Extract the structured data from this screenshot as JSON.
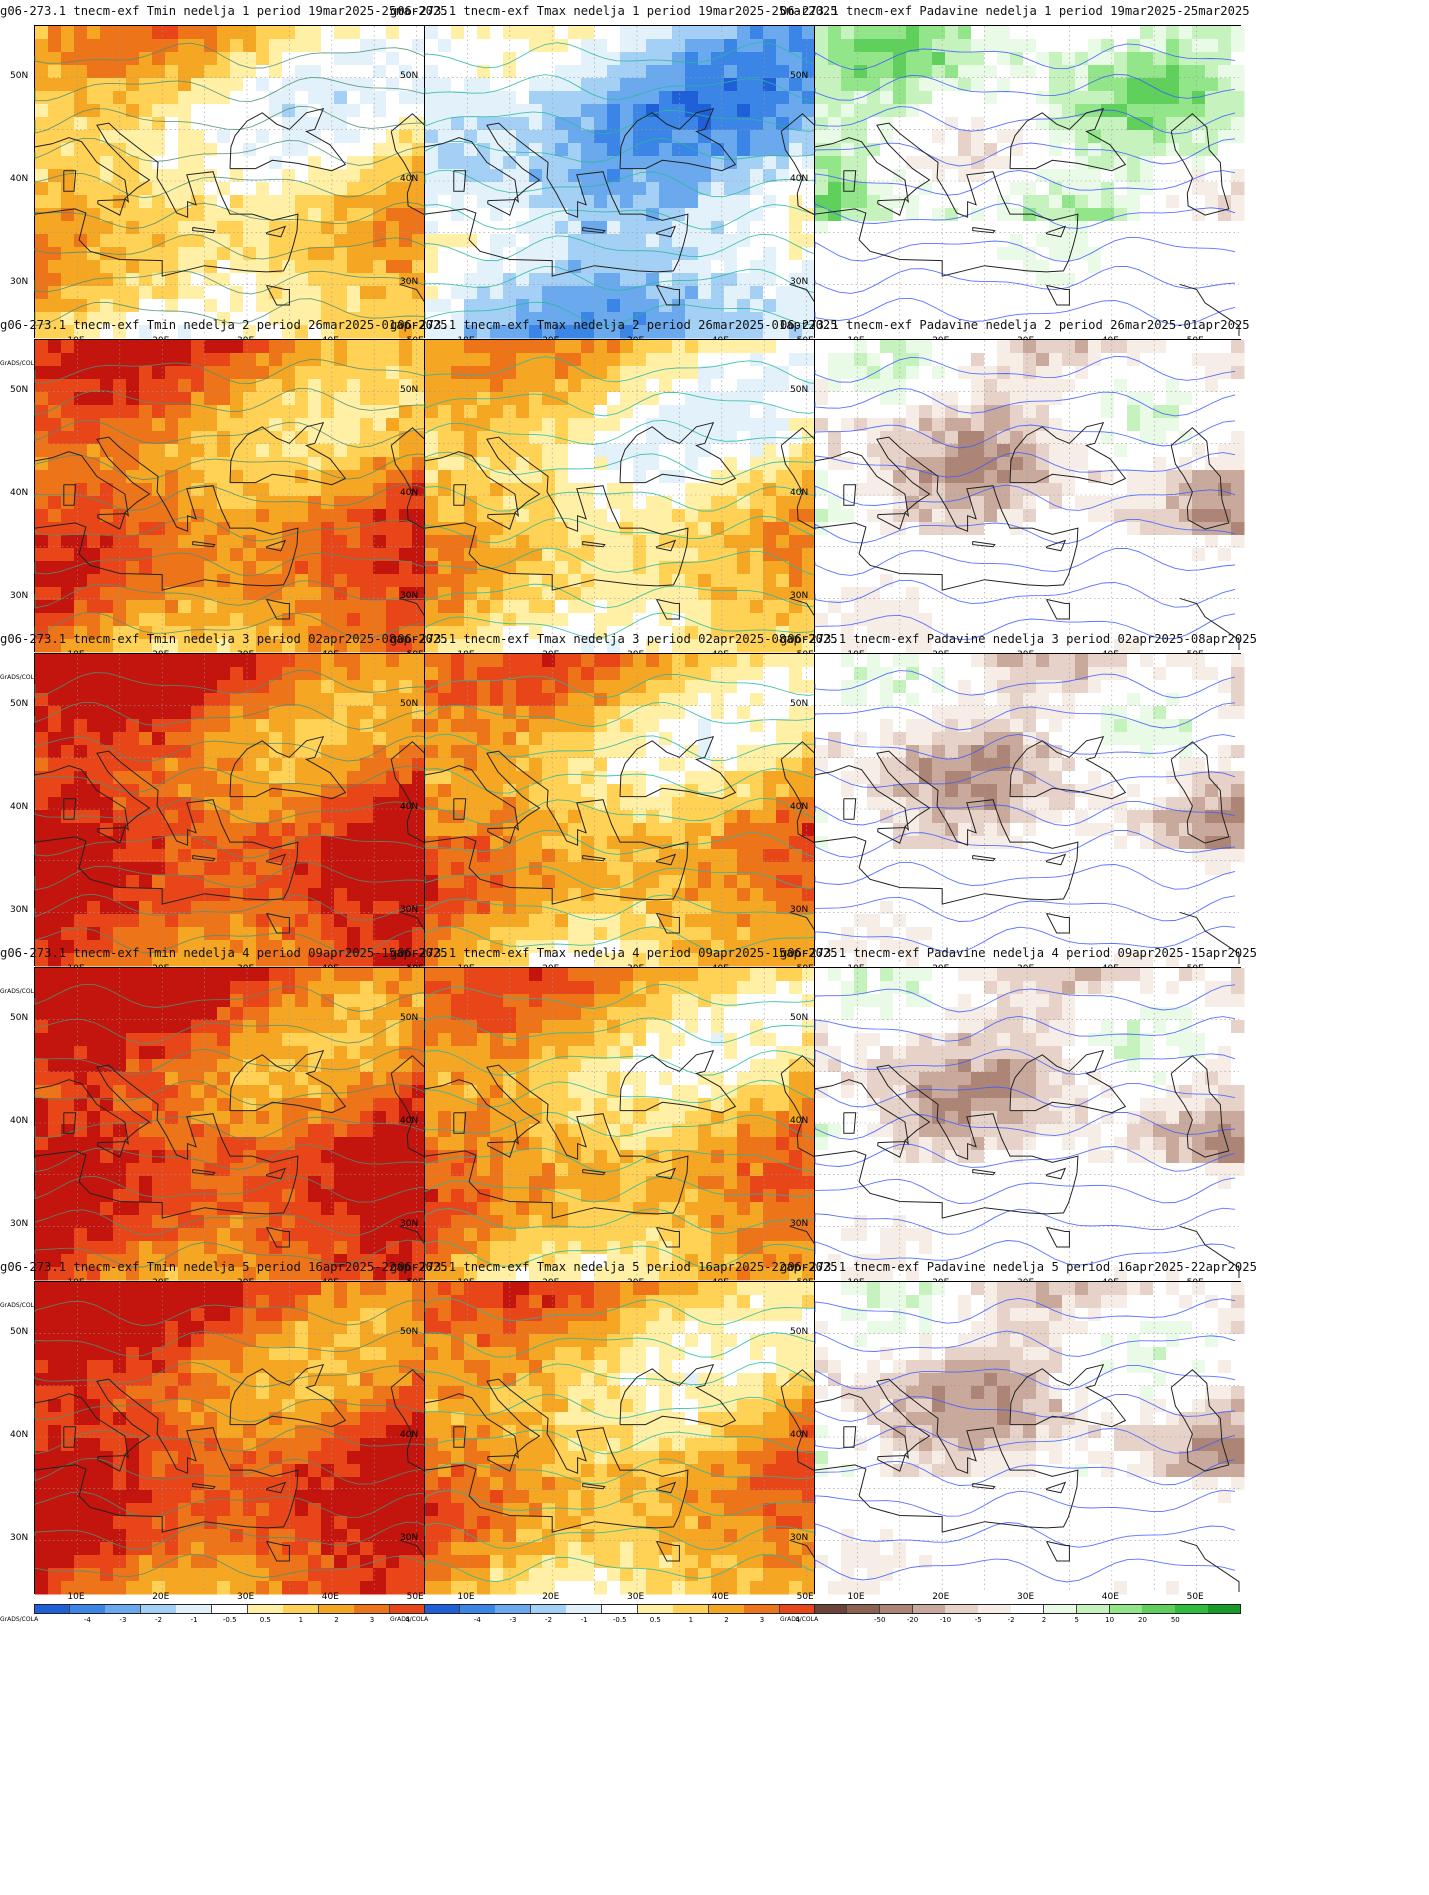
{
  "grads_label": "GrADS/COLA",
  "x_ticks": [
    "10E",
    "20E",
    "30E",
    "40E",
    "50E"
  ],
  "y_ticks": [
    "50N",
    "40N",
    "30N"
  ],
  "colorbars": {
    "temp": {
      "colors": [
        "#1f5fd8",
        "#3a85e6",
        "#6aa9ee",
        "#a5d0f6",
        "#e3f1fb",
        "#ffffff",
        "#fff0a6",
        "#ffd154",
        "#f5a623",
        "#ee7419",
        "#e84619",
        "#c3140d"
      ],
      "ticks": [
        "-4",
        "-3",
        "-2",
        "-1",
        "-0.5",
        "0.5",
        "1",
        "2",
        "3",
        "4"
      ]
    },
    "precip": {
      "colors": [
        "#6b4437",
        "#8b6251",
        "#ac8577",
        "#c9a99c",
        "#e6d2c8",
        "#f7ede7",
        "#ffffff",
        "#e9fbe6",
        "#c6f2bd",
        "#93e58a",
        "#5fd05c",
        "#2fbb3b",
        "#169b26"
      ],
      "ticks": [
        "-50",
        "-20",
        "-10",
        "-5",
        "-2",
        "2",
        "5",
        "10",
        "20",
        "50"
      ]
    }
  },
  "rows": [
    {
      "week": 1,
      "panels": [
        {
          "title": "g06-273.1 tnecm-exf Tmin nedelja 1 period 19mar2025-25mar2025",
          "kind": "tmin",
          "colorbar": "temp",
          "anomaly_level": 1
        },
        {
          "title": "g06-273.1 tnecm-exf Tmax nedelja 1 period 19mar2025-25mar2025",
          "kind": "tmax",
          "colorbar": "temp",
          "anomaly_level": -2
        },
        {
          "title": "06-273.1 tnecm-exf Padavine nedelja 1 period 19mar2025-25mar2025",
          "kind": "precip",
          "colorbar": "precip",
          "anomaly_level": 1
        }
      ]
    },
    {
      "week": 2,
      "panels": [
        {
          "title": "g06-273.1 tnecm-exf Tmin nedelja 2 period 26mar2025-01apr2025",
          "kind": "tmin",
          "colorbar": "temp",
          "anomaly_level": 3
        },
        {
          "title": "g06-273.1 tnecm-exf Tmax nedelja 2 period 26mar2025-01apr2025",
          "kind": "tmax",
          "colorbar": "temp",
          "anomaly_level": 1
        },
        {
          "title": "06-273.1 tnecm-exf Padavine nedelja 2 period 26mar2025-01apr2025",
          "kind": "precip",
          "colorbar": "precip",
          "anomaly_level": -1
        }
      ]
    },
    {
      "week": 3,
      "panels": [
        {
          "title": "g06-273.1 tnecm-exf Tmin nedelja 3 period 02apr2025-08apr2025",
          "kind": "tmin",
          "colorbar": "temp",
          "anomaly_level": 4
        },
        {
          "title": "g06-273.1 tnecm-exf Tmax nedelja 3 period 02apr2025-08apr2025",
          "kind": "tmax",
          "colorbar": "temp",
          "anomaly_level": 2
        },
        {
          "title": "g06-273.1 tnecm-exf Padavine nedelja 3 period 02apr2025-08apr2025",
          "kind": "precip",
          "colorbar": "precip",
          "anomaly_level": -1
        }
      ]
    },
    {
      "week": 4,
      "panels": [
        {
          "title": "g06-273.1 tnecm-exf Tmin nedelja 4 period 09apr2025-15apr2025",
          "kind": "tmin",
          "colorbar": "temp",
          "anomaly_level": 4
        },
        {
          "title": "g06-273.1 tnecm-exf Tmax nedelja 4 period 09apr2025-15apr2025",
          "kind": "tmax",
          "colorbar": "temp",
          "anomaly_level": 2
        },
        {
          "title": "g06-273.1 tnecm-exf Padavine nedelja 4 period 09apr2025-15apr2025",
          "kind": "precip",
          "colorbar": "precip",
          "anomaly_level": -1
        }
      ]
    },
    {
      "week": 5,
      "panels": [
        {
          "title": "g06-273.1 tnecm-exf Tmin nedelja 5 period 16apr2025-22apr2025",
          "kind": "tmin",
          "colorbar": "temp",
          "anomaly_level": 4
        },
        {
          "title": "g06-273.1 tnecm-exf Tmax nedelja 5 period 16apr2025-22apr2025",
          "kind": "tmax",
          "colorbar": "temp",
          "anomaly_level": 2
        },
        {
          "title": "g06-273.1 tnecm-exf Padavine nedelja 5 period 16apr2025-22apr2025",
          "kind": "precip",
          "colorbar": "precip",
          "anomaly_level": -1
        }
      ]
    }
  ]
}
